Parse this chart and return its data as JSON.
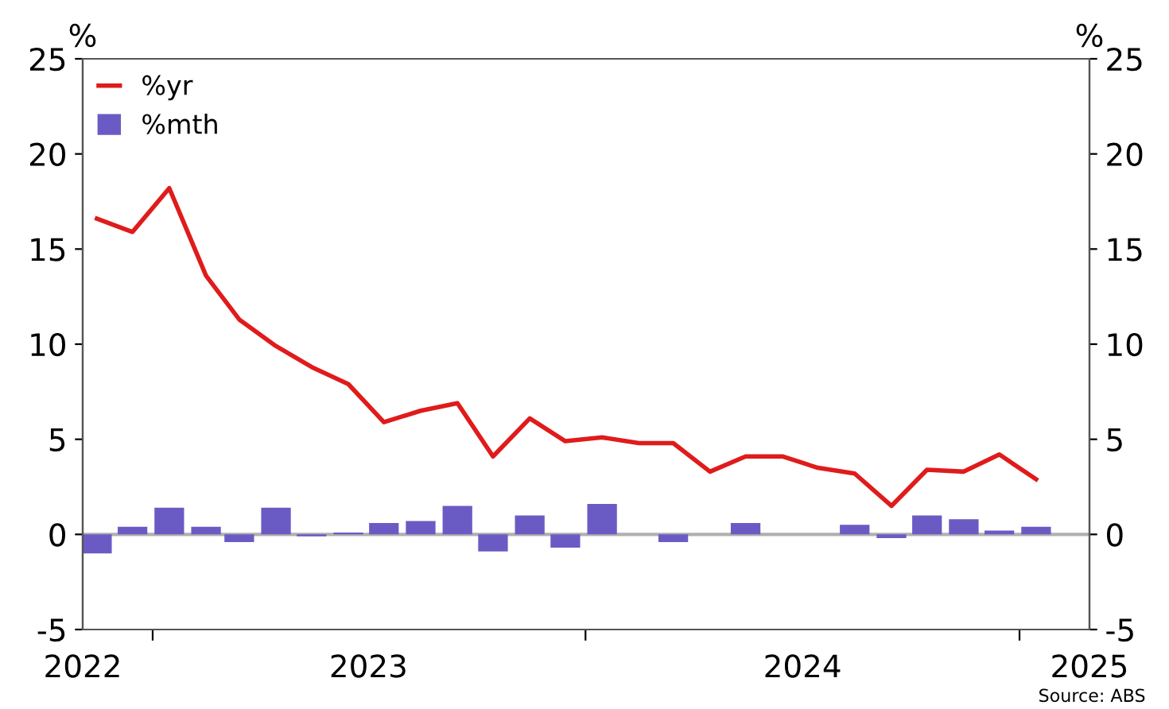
{
  "chart_data": {
    "type": "bar",
    "ylabel": "%",
    "y2label": "%",
    "x": [
      "2022-11-15",
      "2022-12-15",
      "2023-01-15",
      "2023-02-15",
      "2023-03-15",
      "2023-04-15",
      "2023-05-15",
      "2023-06-15",
      "2023-07-15",
      "2023-08-15",
      "2023-09-15",
      "2023-10-15",
      "2023-11-15",
      "2023-12-15",
      "2024-01-15",
      "2024-02-15",
      "2024-03-15",
      "2024-04-15",
      "2024-05-15",
      "2024-06-15",
      "2024-07-15",
      "2024-08-15",
      "2024-09-15",
      "2024-10-15",
      "2024-11-15",
      "2024-12-15",
      "2025-01-15"
    ],
    "series": [
      {
        "name": "%yr",
        "type": "line",
        "color": "#e01b1b",
        "values": [
          16.6,
          15.9,
          18.2,
          13.6,
          11.3,
          9.9,
          8.8,
          7.9,
          5.9,
          6.5,
          6.9,
          4.1,
          6.1,
          4.9,
          5.1,
          4.8,
          4.8,
          3.3,
          4.1,
          4.1,
          3.5,
          3.2,
          1.5,
          3.4,
          3.3,
          4.2,
          2.9
        ]
      },
      {
        "name": "%mth",
        "color": "#6a5bc4",
        "values": [
          -1.0,
          0.4,
          1.4,
          0.4,
          -0.4,
          1.4,
          -0.1,
          0.1,
          0.6,
          0.7,
          1.5,
          -0.9,
          1.0,
          -0.7,
          1.6,
          null,
          -0.4,
          null,
          0.6,
          null,
          null,
          0.5,
          -0.2,
          1.0,
          0.8,
          0.2,
          0.4
        ]
      }
    ],
    "xlim": [
      "2022-11-03",
      "2025-03-01"
    ],
    "xticks": [
      {
        "value": "2022-11-03",
        "label": "2022"
      },
      {
        "value": "2023-01-01",
        "label": null
      },
      {
        "value": "2023-07-02",
        "label": "2023"
      },
      {
        "value": "2024-01-01",
        "label": null
      },
      {
        "value": "2024-07-02",
        "label": "2024"
      },
      {
        "value": "2025-01-01",
        "label": null
      },
      {
        "value": "2025-03-01",
        "label": "2025"
      }
    ],
    "ylim": [
      -5,
      25
    ],
    "yticks": [
      -5,
      0,
      5,
      10,
      15,
      20,
      25
    ],
    "y2lim": [
      -5,
      25
    ],
    "y2ticks": [
      -5,
      0,
      5,
      10,
      15,
      20,
      25
    ],
    "ref_lines": [
      {
        "axis": "y",
        "value": 0,
        "color": "#b0b0b0"
      }
    ],
    "legend": "top left",
    "annotations": [
      "Source: ABS"
    ]
  }
}
